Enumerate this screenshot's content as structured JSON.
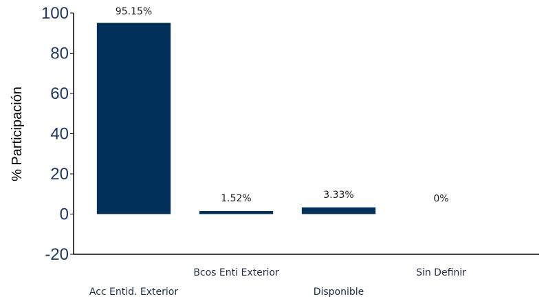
{
  "chart_data": {
    "type": "bar",
    "categories": [
      "Acc Entid. Exterior",
      "Bcos Enti Exterior",
      "Disponible",
      "Sin Definir"
    ],
    "values": [
      95.15,
      1.52,
      3.33,
      0
    ],
    "data_labels": [
      "95.15%",
      "1.52%",
      "3.33%",
      "0%"
    ],
    "title": "",
    "xlabel": "",
    "ylabel": "% Participación",
    "ylim": [
      -20,
      100
    ],
    "yticks": [
      100,
      80,
      60,
      40,
      20,
      0,
      -20
    ],
    "grid": false,
    "legend": "none",
    "bar_color": "#003057",
    "tick_color": "#1f3864",
    "x_label_rows": [
      "low",
      "high",
      "low",
      "high"
    ]
  }
}
